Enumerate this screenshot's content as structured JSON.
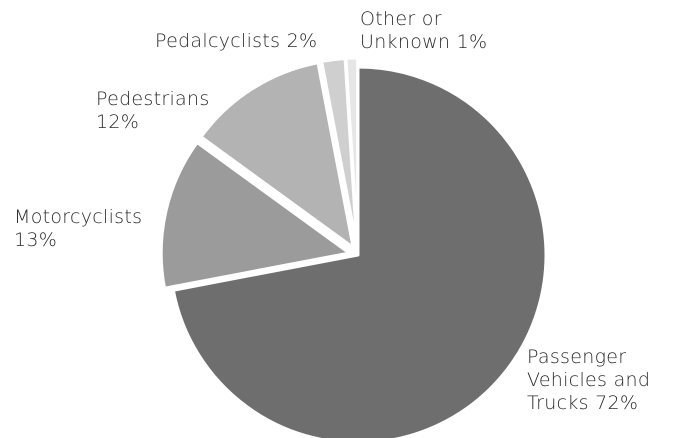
{
  "chart_data": {
    "type": "pie",
    "title": "",
    "slices": [
      {
        "name": "Passenger Vehicles and Trucks",
        "value": 72,
        "color": "#6e6e6e",
        "label_lines": [
          "Passenger",
          "Vehicles and",
          "Trucks 72%"
        ]
      },
      {
        "name": "Motorcyclists",
        "value": 13,
        "color": "#9b9b9b",
        "label_lines": [
          "Motorcyclists",
          "13%"
        ]
      },
      {
        "name": "Pedestrians",
        "value": 12,
        "color": "#b3b3b3",
        "label_lines": [
          "Pedestrians",
          "12%"
        ]
      },
      {
        "name": "Pedalcyclists",
        "value": 2,
        "color": "#cfcfcf",
        "label_lines": [
          "Pedalcyclists 2%"
        ]
      },
      {
        "name": "Other or Unknown",
        "value": 1,
        "color": "#e6e6e6",
        "label_lines": [
          "Other or",
          "Unknown 1%"
        ]
      }
    ],
    "start": "12 o'clock",
    "direction": "clockwise",
    "exploded": [
      "Motorcyclists",
      "Pedestrians",
      "Pedalcyclists",
      "Other or Unknown"
    ]
  }
}
